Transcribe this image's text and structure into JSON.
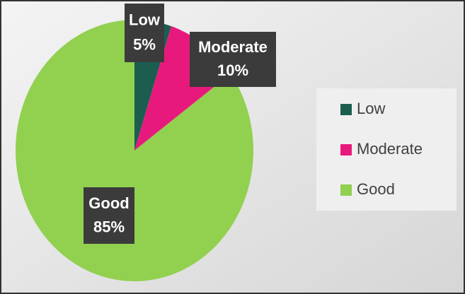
{
  "chart_data": {
    "type": "pie",
    "categories": [
      "Low",
      "Moderate",
      "Good"
    ],
    "values": [
      5,
      10,
      85
    ],
    "value_labels": [
      "5%",
      "10%",
      "85%"
    ],
    "colors": [
      "#1b5e50",
      "#e8197c",
      "#92d050"
    ],
    "legend": "right"
  }
}
